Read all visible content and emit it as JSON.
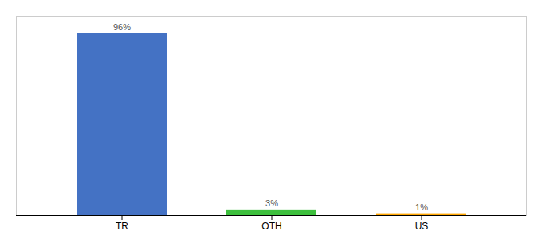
{
  "chart_data": {
    "type": "bar",
    "categories": [
      "TR",
      "OTH",
      "US"
    ],
    "values": [
      96,
      3,
      1
    ],
    "colors": [
      "#4472C4",
      "#3DBF3D",
      "#FFA500"
    ],
    "value_labels": [
      "96%",
      "3%",
      "1%"
    ],
    "data_labels": true,
    "ylim": [
      0,
      105
    ],
    "tick_labels": "x",
    "grid": false
  }
}
